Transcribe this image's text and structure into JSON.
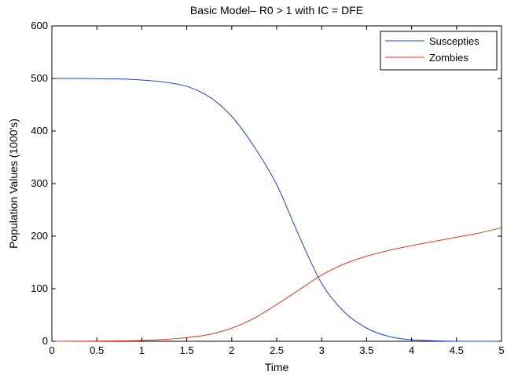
{
  "chart_data": {
    "type": "line",
    "title": "Basic Model– R0 > 1 with IC = DFE",
    "xlabel": "Time",
    "ylabel": "Population Values (1000's)",
    "xlim": [
      0,
      5
    ],
    "ylim": [
      0,
      600
    ],
    "x_ticks": [
      "0",
      "0.5",
      "1",
      "1.5",
      "2",
      "2.5",
      "3",
      "3.5",
      "4",
      "4.5",
      "5"
    ],
    "y_ticks": [
      "0",
      "100",
      "200",
      "300",
      "400",
      "500",
      "600"
    ],
    "grid": false,
    "legend_position": "top-right",
    "series": [
      {
        "name": "Suscepties",
        "color": "#1f3fe0",
        "x": [
          0,
          0.25,
          0.5,
          0.75,
          1.0,
          1.25,
          1.5,
          1.75,
          2.0,
          2.25,
          2.5,
          2.75,
          3.0,
          3.25,
          3.5,
          3.75,
          4.0,
          4.25,
          4.5,
          4.75,
          5.0
        ],
        "y": [
          500,
          500,
          499.6,
          499,
          497,
          493,
          485,
          465,
          428,
          370,
          298,
          200,
          110,
          56,
          25,
          9,
          3,
          1,
          0,
          0,
          0
        ]
      },
      {
        "name": "Zombies",
        "color": "#e8371e",
        "x": [
          0,
          0.25,
          0.5,
          0.75,
          1.0,
          1.25,
          1.5,
          1.75,
          2.0,
          2.25,
          2.5,
          2.75,
          3.0,
          3.25,
          3.5,
          3.75,
          4.0,
          4.25,
          4.5,
          4.75,
          5.0
        ],
        "y": [
          0,
          0.1,
          0.3,
          0.7,
          1.5,
          3.5,
          7,
          13,
          25,
          44,
          70,
          98,
          126,
          147,
          162,
          173,
          182,
          190,
          198,
          206,
          216
        ]
      }
    ]
  }
}
